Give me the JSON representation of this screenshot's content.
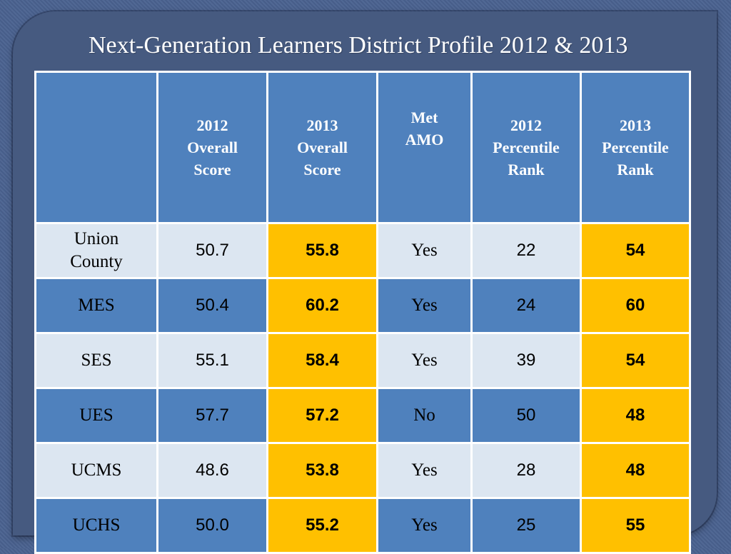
{
  "title": "Next-Generation Learners District Profile 2012 & 2013",
  "table": {
    "headers": [
      "",
      [
        "2012",
        "Overall",
        "Score"
      ],
      [
        "2013",
        "Overall",
        "Score"
      ],
      [
        "Met",
        "AMO"
      ],
      [
        "2012",
        "Percentile",
        "Rank"
      ],
      [
        "2013",
        "Percentile",
        "Rank"
      ]
    ],
    "rows": [
      {
        "name": [
          "Union",
          "County"
        ],
        "score_2012": "50.7",
        "score_2013": "55.8",
        "met_amo": "Yes",
        "rank_2012": "22",
        "rank_2013": "54"
      },
      {
        "name": [
          "MES"
        ],
        "score_2012": "50.4",
        "score_2013": "60.2",
        "met_amo": "Yes",
        "rank_2012": "24",
        "rank_2013": "60"
      },
      {
        "name": [
          "SES"
        ],
        "score_2012": "55.1",
        "score_2013": "58.4",
        "met_amo": "Yes",
        "rank_2012": "39",
        "rank_2013": "54"
      },
      {
        "name": [
          "UES"
        ],
        "score_2012": "57.7",
        "score_2013": "57.2",
        "met_amo": "No",
        "rank_2012": "50",
        "rank_2013": "48"
      },
      {
        "name": [
          "UCMS"
        ],
        "score_2012": "48.6",
        "score_2013": "53.8",
        "met_amo": "Yes",
        "rank_2012": "28",
        "rank_2013": "48"
      },
      {
        "name": [
          "UCHS"
        ],
        "score_2012": "50.0",
        "score_2013": "55.2",
        "met_amo": "Yes",
        "rank_2012": "25",
        "rank_2013": "55"
      }
    ]
  },
  "colors": {
    "header_blue": "#4f81bd",
    "light_row": "#dce6f1",
    "highlight_gold": "#ffc000",
    "background": "#465a80"
  }
}
